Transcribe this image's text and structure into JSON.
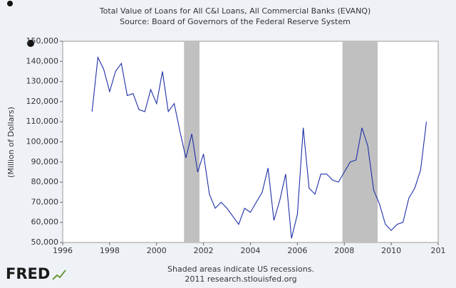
{
  "chart_data": {
    "type": "line",
    "title": "Total Value of Loans for All C&I Loans, All Commercial Banks (EVANQ)",
    "subtitle": "Source: Board of Governors of the Federal Reserve System",
    "y_label": "(Million of Dollars)",
    "footnote": "Shaded areas indicate US recessions.",
    "credit": "2011 research.stlouisfed.org",
    "logo": "FRED",
    "color": "#1f2fa8",
    "recession_color": "#c0c0c0",
    "recessions": [
      [
        2001.17,
        2001.83
      ],
      [
        2007.92,
        2009.42
      ]
    ],
    "x": [
      1997.25,
      1997.5,
      1997.75,
      1998,
      1998.25,
      1998.5,
      1998.75,
      1999,
      1999.25,
      1999.5,
      1999.75,
      2000,
      2000.25,
      2000.5,
      2000.75,
      2001,
      2001.25,
      2001.5,
      2001.75,
      2002,
      2002.25,
      2002.5,
      2002.75,
      2003,
      2003.25,
      2003.5,
      2003.75,
      2004,
      2004.25,
      2004.5,
      2004.75,
      2005,
      2005.25,
      2005.5,
      2005.75,
      2006,
      2006.25,
      2006.5,
      2006.75,
      2007,
      2007.25,
      2007.5,
      2007.75,
      2008,
      2008.25,
      2008.5,
      2008.75,
      2009,
      2009.25,
      2009.5,
      2009.75,
      2010,
      2010.25,
      2010.5,
      2010.75,
      2011,
      2011.25,
      2011.5
    ],
    "values": [
      115000,
      142000,
      136000,
      125000,
      135000,
      139000,
      123000,
      124000,
      116000,
      115000,
      126000,
      119000,
      135000,
      115000,
      119000,
      105000,
      92000,
      104000,
      85000,
      94000,
      74000,
      67000,
      70000,
      67000,
      63000,
      59000,
      67000,
      65000,
      70000,
      75000,
      87000,
      61000,
      71000,
      84000,
      52000,
      64000,
      107000,
      77000,
      74000,
      84000,
      84000,
      81000,
      80000,
      85000,
      90000,
      91000,
      107000,
      98000,
      76000,
      69000,
      59000,
      56000,
      59000,
      60000,
      72000,
      77000,
      86000,
      110000
    ],
    "xlim": [
      1996,
      2012
    ],
    "xticks": [
      1996,
      1998,
      2000,
      2002,
      2004,
      2006,
      2008,
      2010,
      {
        "value": 2012,
        "label": "201"
      }
    ],
    "ylim": [
      50000,
      150000
    ],
    "yticks": [
      {
        "value": 50000,
        "label": "50,000"
      },
      {
        "value": 60000,
        "label": "60,000"
      },
      {
        "value": 70000,
        "label": "70,000"
      },
      {
        "value": 80000,
        "label": "80,000"
      },
      {
        "value": 90000,
        "label": "90,000"
      },
      {
        "value": 100000,
        "label": "100,000"
      },
      {
        "value": 110000,
        "label": "110,000"
      },
      {
        "value": 120000,
        "label": "120,000"
      },
      {
        "value": 130000,
        "label": "130,000"
      },
      {
        "value": 140000,
        "label": "140,000"
      },
      {
        "value": 150000,
        "label": "150,000"
      }
    ],
    "grid": false
  }
}
